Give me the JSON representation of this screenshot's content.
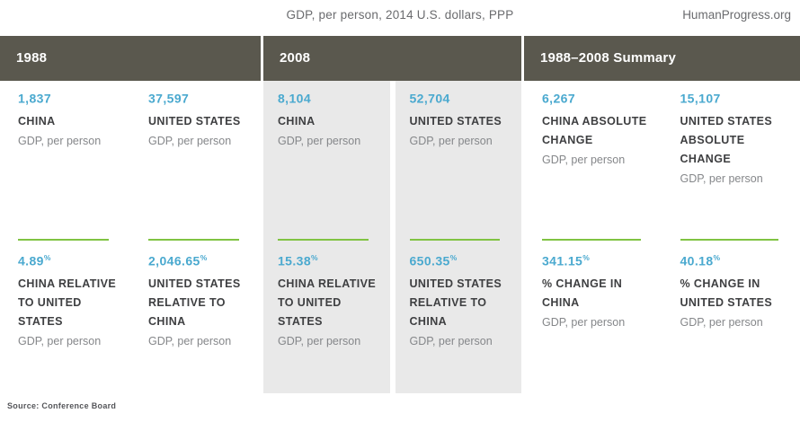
{
  "page": {
    "title": "GDP, per person, 2014 U.S. dollars, PPP",
    "brand": "HumanProgress.org",
    "source": "Source: Conference Board"
  },
  "colors": {
    "header_bar_bg": "#5a584e",
    "header_bar_text": "#ffffff",
    "value_blue": "#4aa9cf",
    "rule_green": "#80c342",
    "shaded_cell_bg": "#e9e9e9",
    "label_dark": "#3e3f41",
    "sublabel_gray": "#85878a",
    "title_gray": "#6a6b6e"
  },
  "sections": [
    {
      "header": "1988",
      "cells": [
        {
          "top": {
            "value": "1,837",
            "suffix": "",
            "label": "CHINA",
            "sublabel": "GDP, per person"
          },
          "bottom": {
            "value": "4.89",
            "suffix": "%",
            "label": "CHINA RELATIVE\nTO UNITED\nSTATES",
            "sublabel": "GDP, per person"
          }
        },
        {
          "top": {
            "value": "37,597",
            "suffix": "",
            "label": "UNITED STATES",
            "sublabel": "GDP, per person"
          },
          "bottom": {
            "value": "2,046.65",
            "suffix": "%",
            "label": "UNITED STATES\nRELATIVE TO\nCHINA",
            "sublabel": "GDP, per person"
          }
        }
      ]
    },
    {
      "header": "2008",
      "cells": [
        {
          "top": {
            "value": "8,104",
            "suffix": "",
            "label": "CHINA",
            "sublabel": "GDP, per person"
          },
          "bottom": {
            "value": "15.38",
            "suffix": "%",
            "label": "CHINA RELATIVE\nTO UNITED\nSTATES",
            "sublabel": "GDP, per person"
          }
        },
        {
          "top": {
            "value": "52,704",
            "suffix": "",
            "label": "UNITED STATES",
            "sublabel": "GDP, per person"
          },
          "bottom": {
            "value": "650.35",
            "suffix": "%",
            "label": "UNITED STATES\nRELATIVE TO\nCHINA",
            "sublabel": "GDP, per person"
          }
        }
      ]
    },
    {
      "header": "1988–2008 Summary",
      "cells": [
        {
          "top": {
            "value": "6,267",
            "suffix": "",
            "label": "CHINA ABSOLUTE\nCHANGE",
            "sublabel": "GDP, per person"
          },
          "bottom": {
            "value": "341.15",
            "suffix": "%",
            "label": "% CHANGE IN\nCHINA",
            "sublabel": "GDP, per person"
          }
        },
        {
          "top": {
            "value": "15,107",
            "suffix": "",
            "label": "UNITED STATES\nABSOLUTE\nCHANGE",
            "sublabel": "GDP, per person"
          },
          "bottom": {
            "value": "40.18",
            "suffix": "%",
            "label": "% CHANGE IN\nUNITED STATES",
            "sublabel": "GDP, per person"
          }
        }
      ]
    }
  ],
  "chart_data": {
    "type": "table",
    "title": "GDP, per person, 2014 U.S. dollars, PPP",
    "source": "Conference Board",
    "unit": "2014 U.S. dollars, PPP",
    "groups": [
      "1988",
      "2008",
      "1988–2008 Summary"
    ],
    "rows": [
      {
        "group": "1988",
        "label": "CHINA",
        "value": 1837,
        "unit": "GDP, per person"
      },
      {
        "group": "1988",
        "label": "UNITED STATES",
        "value": 37597,
        "unit": "GDP, per person"
      },
      {
        "group": "1988",
        "label": "CHINA RELATIVE TO UNITED STATES",
        "value": 4.89,
        "unit": "%"
      },
      {
        "group": "1988",
        "label": "UNITED STATES RELATIVE TO CHINA",
        "value": 2046.65,
        "unit": "%"
      },
      {
        "group": "2008",
        "label": "CHINA",
        "value": 8104,
        "unit": "GDP, per person"
      },
      {
        "group": "2008",
        "label": "UNITED STATES",
        "value": 52704,
        "unit": "GDP, per person"
      },
      {
        "group": "2008",
        "label": "CHINA RELATIVE TO UNITED STATES",
        "value": 15.38,
        "unit": "%"
      },
      {
        "group": "2008",
        "label": "UNITED STATES RELATIVE TO CHINA",
        "value": 650.35,
        "unit": "%"
      },
      {
        "group": "1988–2008 Summary",
        "label": "CHINA ABSOLUTE CHANGE",
        "value": 6267,
        "unit": "GDP, per person"
      },
      {
        "group": "1988–2008 Summary",
        "label": "UNITED STATES ABSOLUTE CHANGE",
        "value": 15107,
        "unit": "GDP, per person"
      },
      {
        "group": "1988–2008 Summary",
        "label": "% CHANGE IN CHINA",
        "value": 341.15,
        "unit": "%"
      },
      {
        "group": "1988–2008 Summary",
        "label": "% CHANGE IN UNITED STATES",
        "value": 40.18,
        "unit": "%"
      }
    ]
  }
}
